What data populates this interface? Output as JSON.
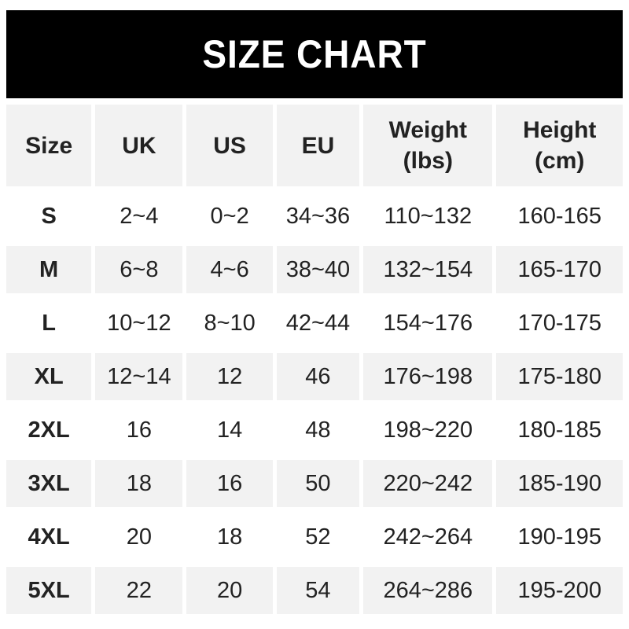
{
  "title": "SIZE CHART",
  "colors": {
    "banner_bg": "#000000",
    "banner_text": "#ffffff",
    "row_alt_bg": "#f2f2f2",
    "text_color": "#222222"
  },
  "table": {
    "headers": [
      "Size",
      "UK",
      "US",
      "EU",
      "Weight\n(lbs)",
      "Height\n(cm)"
    ],
    "rows": [
      [
        "S",
        "2~4",
        "0~2",
        "34~36",
        "110~132",
        "160-165"
      ],
      [
        "M",
        "6~8",
        "4~6",
        "38~40",
        "132~154",
        "165-170"
      ],
      [
        "L",
        "10~12",
        "8~10",
        "42~44",
        "154~176",
        "170-175"
      ],
      [
        "XL",
        "12~14",
        "12",
        "46",
        "176~198",
        "175-180"
      ],
      [
        "2XL",
        "16",
        "14",
        "48",
        "198~220",
        "180-185"
      ],
      [
        "3XL",
        "18",
        "16",
        "50",
        "220~242",
        "185-190"
      ],
      [
        "4XL",
        "20",
        "18",
        "52",
        "242~264",
        "190-195"
      ],
      [
        "5XL",
        "22",
        "20",
        "54",
        "264~286",
        "195-200"
      ]
    ]
  }
}
